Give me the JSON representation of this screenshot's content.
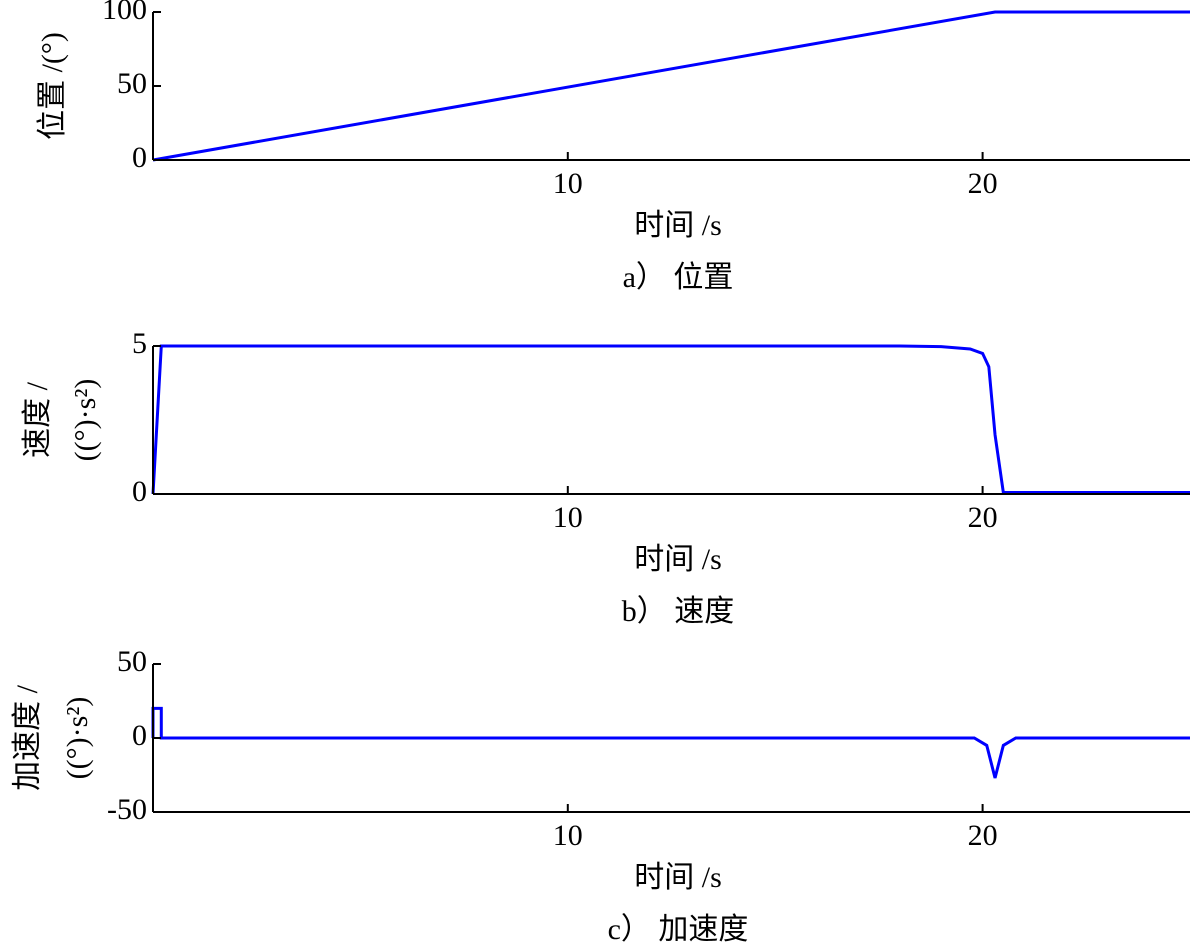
{
  "chart_data": [
    {
      "type": "line",
      "x_label": "时间 /s",
      "y_label": [
        "位置 /(°)"
      ],
      "caption": "a） 位置",
      "x": [
        0,
        20.3,
        25
      ],
      "values": [
        0,
        100,
        100
      ],
      "color": "#0000ff",
      "xlim": [
        0,
        25
      ],
      "ylim": [
        0,
        100
      ],
      "xticks": [
        10,
        20
      ],
      "yticks": [
        0,
        50,
        100
      ]
    },
    {
      "type": "line",
      "x_label": "时间 /s",
      "y_label": [
        "速度 /",
        "((°)·s²)"
      ],
      "caption": "b） 速度",
      "x": [
        0,
        0.2,
        18,
        19,
        19.7,
        20,
        20.15,
        20.3,
        20.5,
        25
      ],
      "values": [
        0,
        5,
        5,
        4.98,
        4.9,
        4.75,
        4.3,
        2,
        0.05,
        0.05
      ],
      "color": "#0000ff",
      "xlim": [
        0,
        25
      ],
      "ylim": [
        0,
        5
      ],
      "xticks": [
        10,
        20
      ],
      "yticks": [
        0,
        5
      ]
    },
    {
      "type": "line",
      "x_label": "时间 /s",
      "y_label": [
        "加速度 /",
        "((°)·s²)"
      ],
      "caption": "c） 加速度",
      "x": [
        0,
        0,
        0.2,
        0.2,
        19.8,
        20.1,
        20.3,
        20.5,
        20.8,
        25
      ],
      "values": [
        0,
        20,
        20,
        0,
        0,
        -5,
        -27,
        -5,
        0,
        0
      ],
      "color": "#0000ff",
      "xlim": [
        0,
        25
      ],
      "ylim": [
        -50,
        50
      ],
      "xticks": [
        10,
        20
      ],
      "yticks": [
        -50,
        0,
        50
      ]
    }
  ]
}
